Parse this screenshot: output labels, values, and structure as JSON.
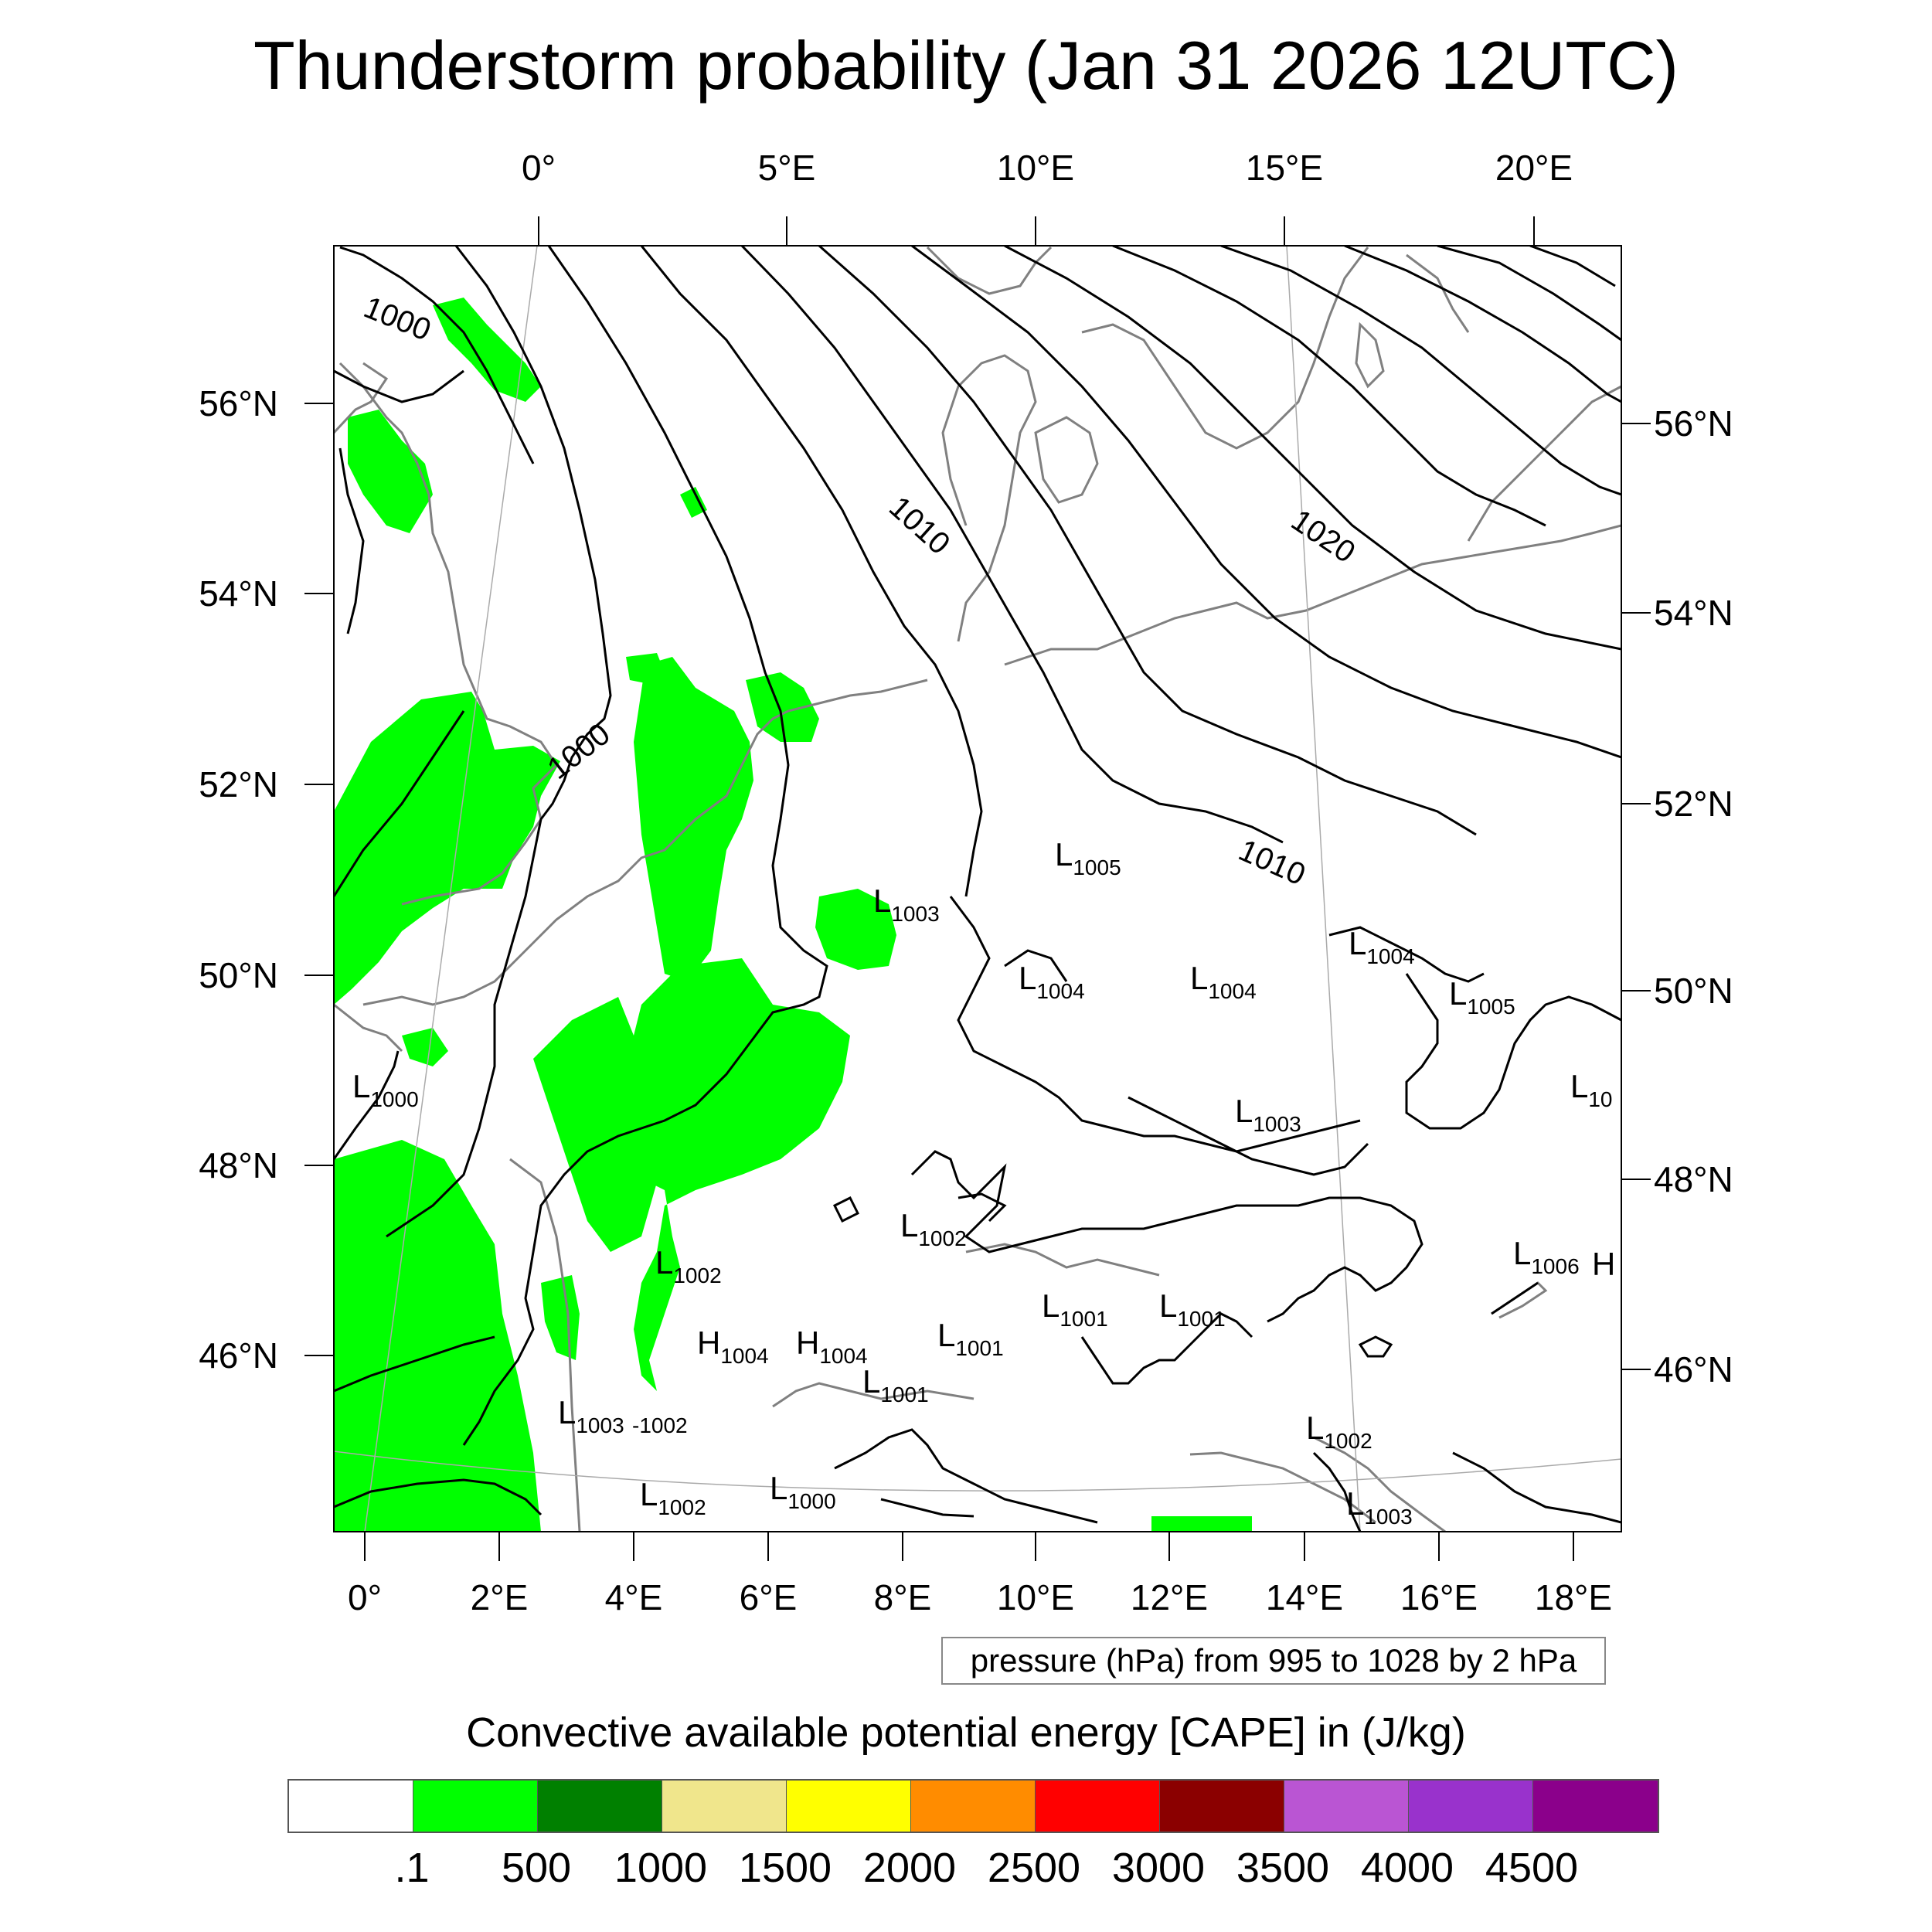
{
  "title": "Thunderstorm probability (Jan 31 2026 12UTC)",
  "map": {
    "top_longitude_labels": [
      "0°",
      "5°E",
      "10°E",
      "15°E",
      "20°E"
    ],
    "bottom_longitude_labels": [
      "0°",
      "2°E",
      "4°E",
      "6°E",
      "8°E",
      "10°E",
      "12°E",
      "14°E",
      "16°E",
      "18°E"
    ],
    "left_latitude_labels": [
      "56°N",
      "54°N",
      "52°N",
      "50°N",
      "48°N",
      "46°N"
    ],
    "right_latitude_labels": [
      "56°N",
      "54°N",
      "52°N",
      "50°N",
      "48°N",
      "46°N"
    ],
    "isobar_labels": [
      "1000",
      "1000",
      "1010",
      "1010",
      "1020"
    ],
    "pressure_centers": [
      {
        "kind": "L",
        "value": "1005"
      },
      {
        "kind": "L",
        "value": "1003"
      },
      {
        "kind": "L",
        "value": "1004"
      },
      {
        "kind": "L",
        "value": "1004"
      },
      {
        "kind": "L",
        "value": "1004"
      },
      {
        "kind": "L",
        "value": "1005"
      },
      {
        "kind": "L",
        "value": "1000"
      },
      {
        "kind": "L",
        "value": "1003"
      },
      {
        "kind": "L",
        "value": "1002"
      },
      {
        "kind": "L",
        "value": "1002"
      },
      {
        "kind": "L",
        "value": "1006"
      },
      {
        "kind": "L",
        "value": "1001"
      },
      {
        "kind": "L",
        "value": "1001"
      },
      {
        "kind": "L",
        "value": "1001"
      },
      {
        "kind": "L",
        "value": "1001"
      },
      {
        "kind": "H",
        "value": "1004"
      },
      {
        "kind": "H",
        "value": "1004"
      },
      {
        "kind": "L",
        "value": "1003"
      },
      {
        "kind": "L",
        "value": "1002"
      },
      {
        "kind": "L",
        "value": "1002"
      },
      {
        "kind": "L",
        "value": "1000"
      },
      {
        "kind": "L",
        "value": "1003"
      },
      {
        "kind": "L",
        "value": "10"
      },
      {
        "kind": "H",
        "value": ""
      }
    ],
    "cape_color": "#00ff00",
    "coast_color": "#808080",
    "isobar_color": "#000000"
  },
  "pressure_note": "pressure (hPa) from 995 to 1028 by 2 hPa",
  "colorbar": {
    "title": "Convective available potential energy [CAPE] in (J/kg)",
    "colors": [
      "#ffffff",
      "#00ff00",
      "#008000",
      "#f0e68c",
      "#ffff00",
      "#ff8c00",
      "#ff0000",
      "#8b0000",
      "#ba55d3",
      "#9932cc",
      "#8b008b"
    ],
    "tick_labels": [
      ".1",
      "500",
      "1000",
      "1500",
      "2000",
      "2500",
      "3000",
      "3500",
      "4000",
      "4500"
    ]
  }
}
